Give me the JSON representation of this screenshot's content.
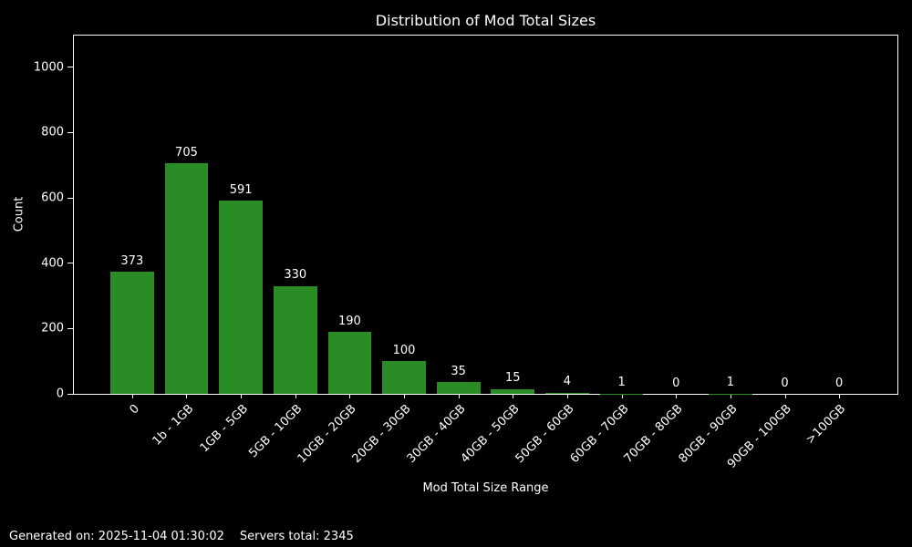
{
  "chart_data": {
    "type": "bar",
    "title": "Distribution of Mod Total Sizes",
    "xlabel": "Mod Total Size Range",
    "ylabel": "Count",
    "categories": [
      "0",
      "1b - 1GB",
      "1GB - 5GB",
      "5GB - 10GB",
      "10GB - 20GB",
      "20GB - 30GB",
      "30GB - 40GB",
      "40GB - 50GB",
      "50GB - 60GB",
      "60GB - 70GB",
      "70GB - 80GB",
      "80GB - 90GB",
      "90GB - 100GB",
      ">100GB"
    ],
    "values": [
      373,
      705,
      591,
      330,
      190,
      100,
      35,
      15,
      4,
      1,
      0,
      1,
      0,
      0
    ],
    "yticks": [
      0,
      200,
      400,
      600,
      800,
      1000
    ],
    "ylim": [
      0,
      1097
    ],
    "grid": false,
    "legend": "none",
    "bar_color": "#2a8c24",
    "background_color": "#000000",
    "text_color": "#ffffff",
    "spine_color": "#ffffff"
  },
  "footer": {
    "generated_text": "Generated on: 2025-11-04 01:30:02",
    "servers_total_text": "Servers total: 2345"
  }
}
